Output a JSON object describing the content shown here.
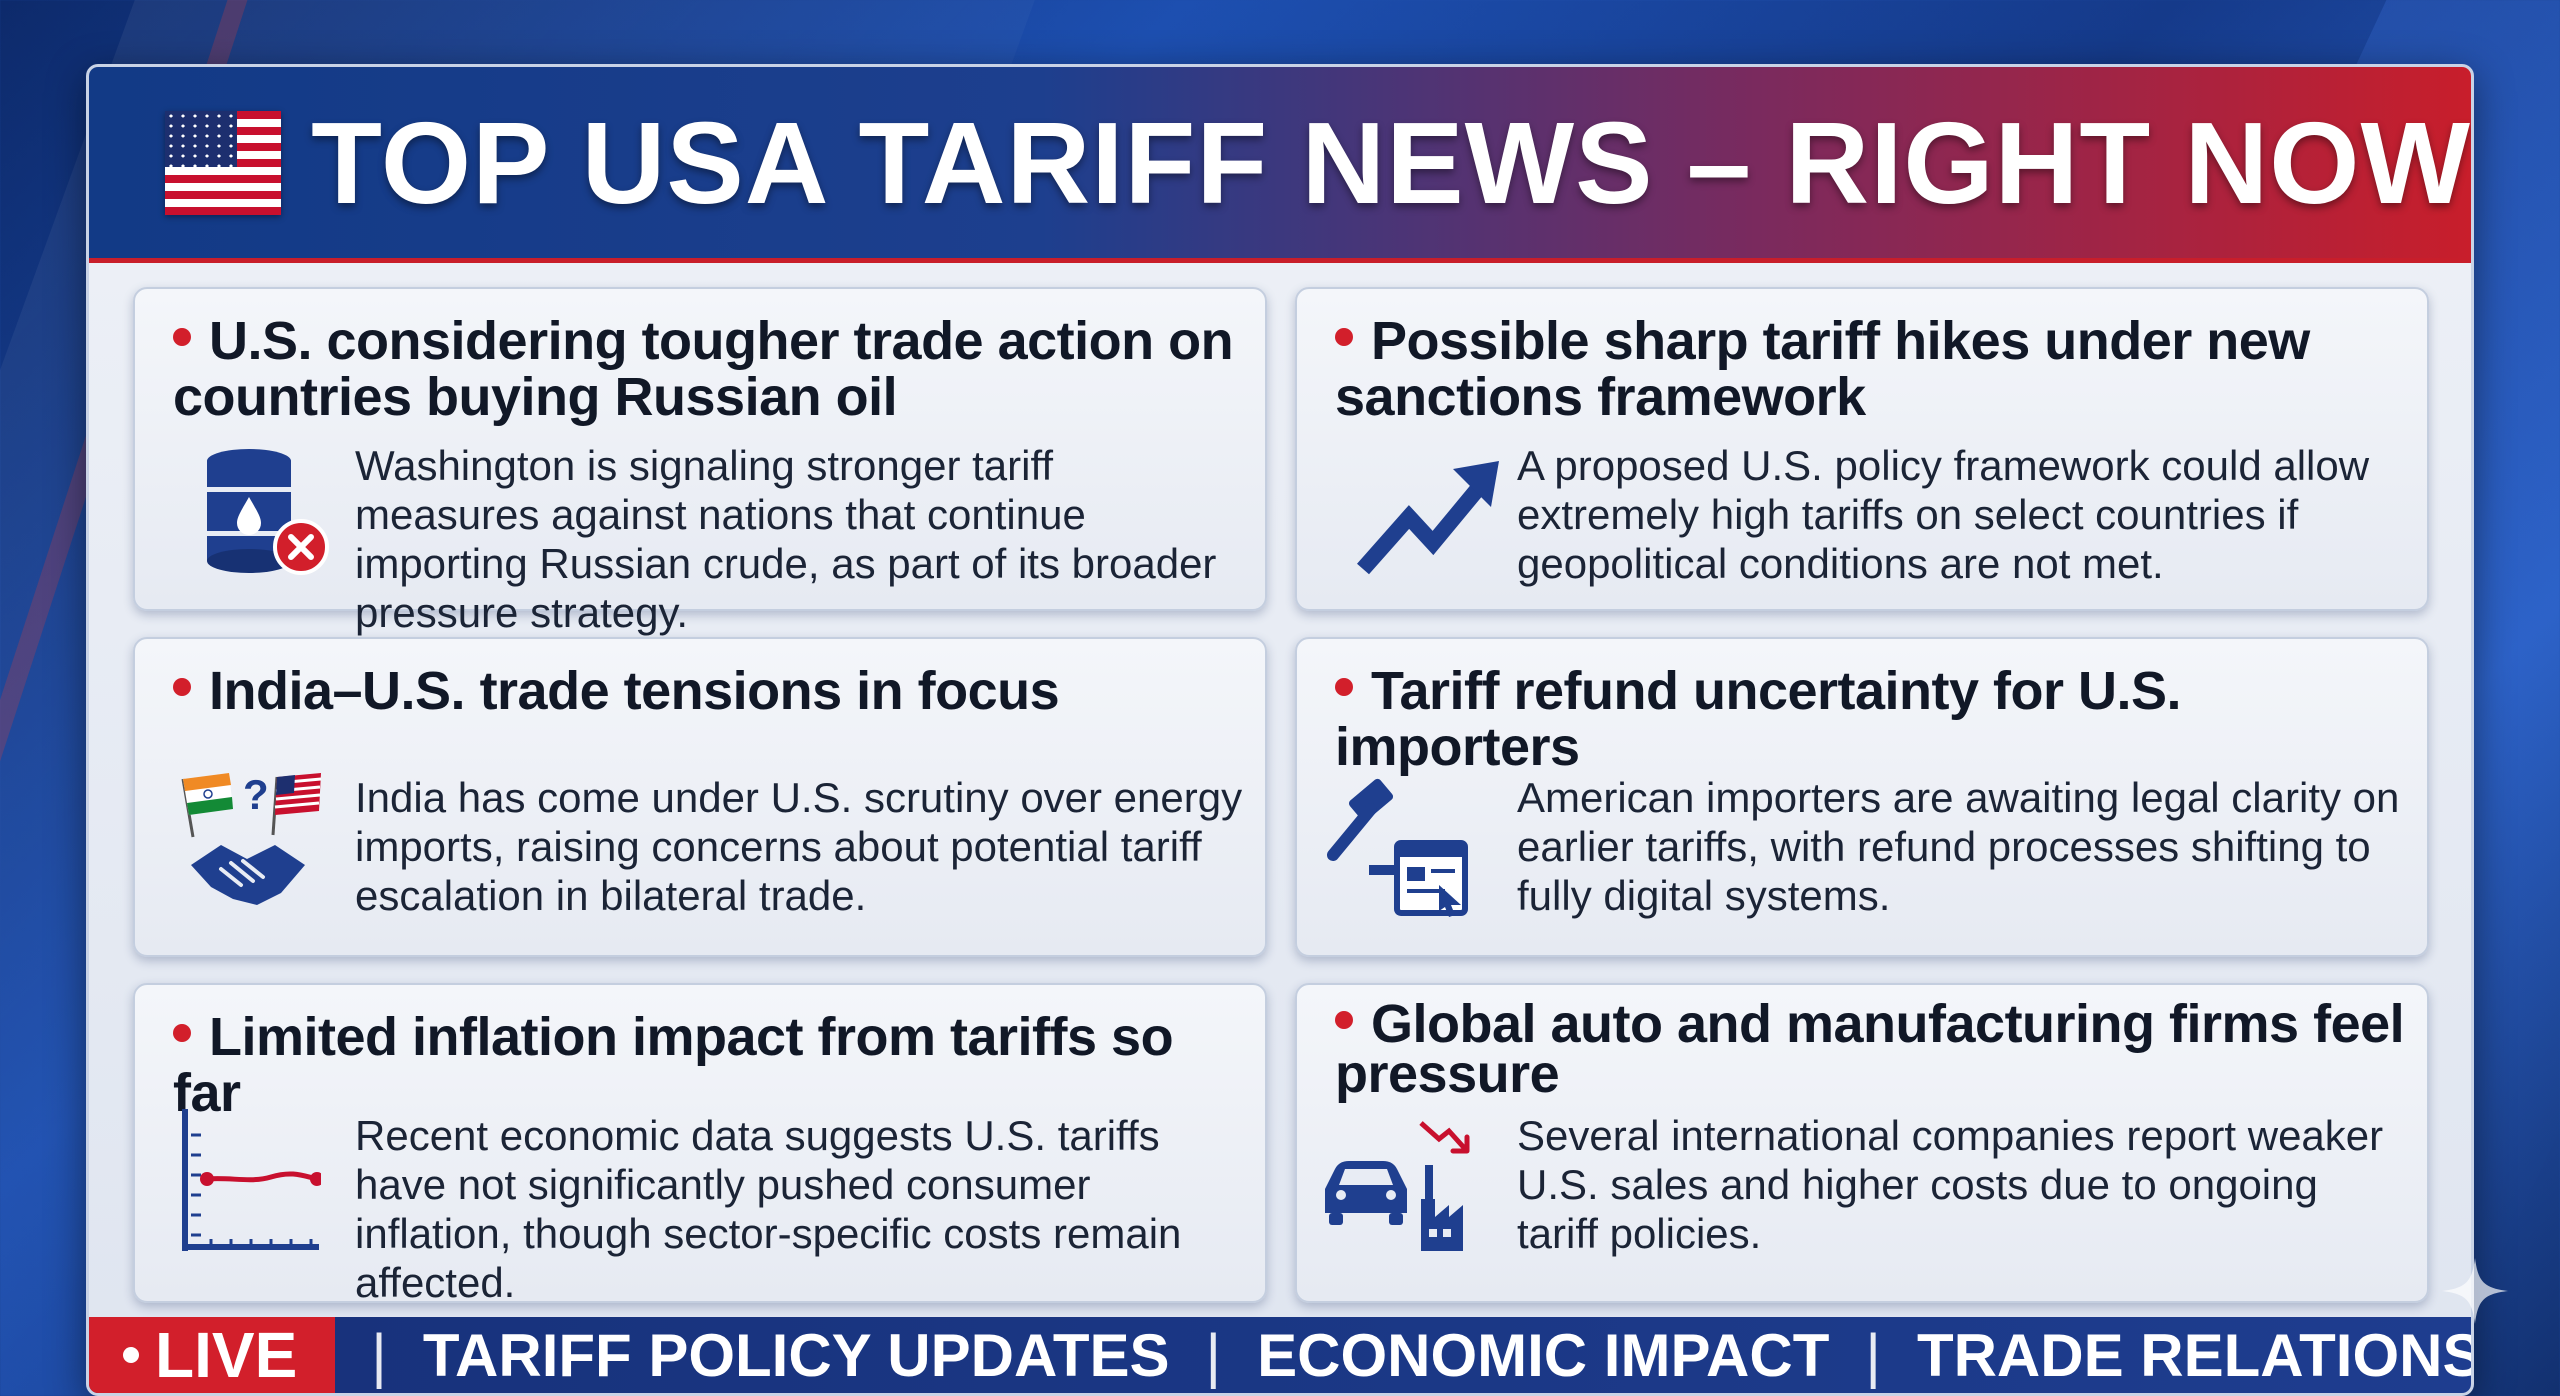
{
  "header": {
    "title": "TOP USA TARIFF NEWS – RIGHT NOW",
    "flag_icon": "us-flag-icon"
  },
  "cards": [
    {
      "headline": "U.S. considering tougher trade action on countries buying Russian oil",
      "body": "Washington is signaling stronger tariff measures against nations that continue importing Russian crude, as part of its broader pressure strategy.",
      "icon": "oil-barrel-cross-icon"
    },
    {
      "headline": "Possible sharp tariff hikes under new sanctions framework",
      "body": "A proposed U.S. policy framework could allow extremely high tariffs on select countries if geopolitical conditions are not met.",
      "icon": "trend-up-arrow-icon"
    },
    {
      "headline": "India–U.S. trade tensions in focus",
      "body": "India has come under U.S. scrutiny over energy imports, raising concerns about potential tariff escalation in bilateral trade.",
      "icon": "flags-handshake-icon"
    },
    {
      "headline": "Tariff refund uncertainty for U.S. importers",
      "body": "American importers are awaiting legal clarity on earlier tariffs, with refund processes shifting to fully digital systems.",
      "icon": "gavel-web-form-icon"
    },
    {
      "headline": "Limited inflation impact from tariffs so far",
      "body": "Recent economic data suggests U.S. tariffs have not significantly pushed consumer inflation, though sector-specific costs remain affected.",
      "icon": "flat-line-chart-icon"
    },
    {
      "headline": "Global auto and manufacturing firms feel pressure",
      "body": "Several international companies report weaker U.S. sales and higher costs due to ongoing tariff policies.",
      "icon": "car-factory-down-icon"
    }
  ],
  "ticker": {
    "live_label": "LIVE",
    "items": [
      "TARIFF POLICY UPDATES",
      "ECONOMIC IMPACT",
      "TRADE RELATIONS"
    ],
    "separator": "|"
  },
  "colors": {
    "navy": "#123a86",
    "red": "#d21f2b",
    "card_bg": "#eef1f7",
    "icon_blue": "#1f3f8f"
  }
}
